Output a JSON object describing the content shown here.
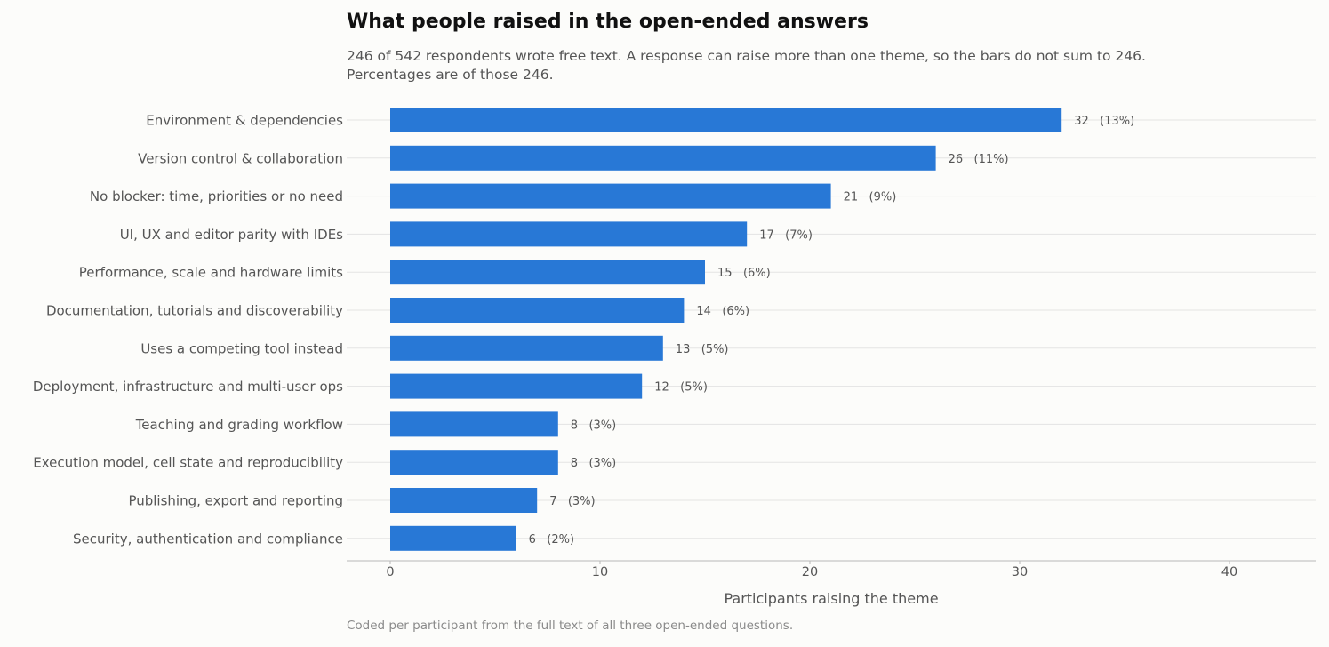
{
  "title": "What people raised in the open-ended answers",
  "subtitle": "246 of 542 respondents wrote free text. A response can raise more than one theme, so the bars do not sum to 246. Percentages are of those 246.",
  "footnote": "Coded per participant from the full text of all three open-ended questions.",
  "colors": {
    "bar": "#2878d6",
    "grid": "#e3e3e3",
    "axis": "#b8b8b8"
  },
  "chart_data": {
    "type": "bar",
    "orientation": "horizontal",
    "categories": [
      "Environment & dependencies",
      "Version control & collaboration",
      "No blocker: time, priorities or no need",
      "UI, UX and editor parity with IDEs",
      "Performance, scale and hardware limits",
      "Documentation, tutorials and discoverability",
      "Uses a competing tool instead",
      "Deployment, infrastructure and multi-user ops",
      "Teaching and grading workflow",
      "Execution model, cell state and reproducibility",
      "Publishing, export and reporting",
      "Security, authentication and compliance"
    ],
    "values": [
      32,
      26,
      21,
      17,
      15,
      14,
      13,
      12,
      8,
      8,
      7,
      6
    ],
    "data_labels": [
      "32   (13%)",
      "26   (11%)",
      "21   (9%)",
      "17   (7%)",
      "15   (6%)",
      "14   (6%)",
      "13   (5%)",
      "12   (5%)",
      "8   (3%)",
      "8   (3%)",
      "7   (3%)",
      "6   (2%)"
    ],
    "xlabel": "Participants raising the theme",
    "xlim": [
      0,
      44
    ],
    "xticks": [
      0,
      10,
      20,
      30,
      40
    ],
    "grid": "horizontal lines per category",
    "legend": "none"
  }
}
